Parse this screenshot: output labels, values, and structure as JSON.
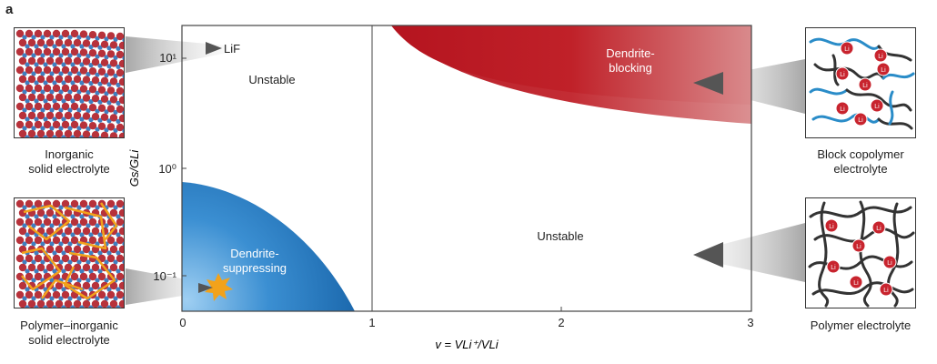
{
  "panel_label": "a",
  "chart_data": {
    "type": "diagram",
    "x_label": "v = VLi⁺/VLi",
    "y_label": "Gs/GLi",
    "x_ticks": [
      "0",
      "1",
      "2",
      "3"
    ],
    "y_ticks": [
      "10⁻¹",
      "10⁰",
      "10¹"
    ],
    "xlim": [
      0,
      3
    ],
    "y_scale": "log",
    "regions": {
      "unstable_top_left": "Unstable",
      "unstable_right": "Unstable",
      "dendrite_blocking": "Dendrite-\nblocking",
      "dendrite_suppressing": "Dendrite-\nsuppressing"
    },
    "points": [
      {
        "name": "LiF",
        "label": "LiF"
      }
    ],
    "colors": {
      "blocking": "#b5141f",
      "suppressing": "#1763a8",
      "star": "#f2a21b"
    }
  },
  "thumbnails": {
    "inorganic": "Inorganic\nsolid electrolyte",
    "polymer_inorganic": "Polymer–inorganic\nsolid electrolyte",
    "block_copolymer": "Block copolymer\nelectrolyte",
    "polymer": "Polymer electrolyte",
    "li_symbol": "Li"
  }
}
